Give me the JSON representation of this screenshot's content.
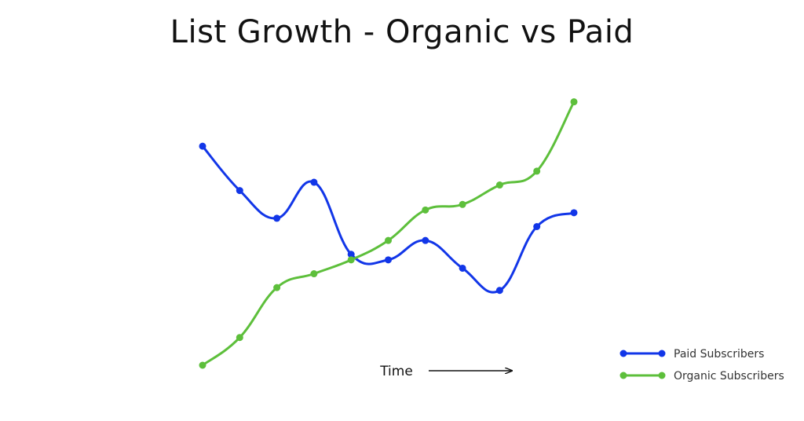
{
  "chart_data": {
    "type": "line",
    "title": "List Growth - Organic vs Paid",
    "xlabel": "Time",
    "ylabel": "",
    "x": [
      1,
      2,
      3,
      4,
      5,
      6,
      7,
      8,
      9,
      10,
      11
    ],
    "ylim": [
      0,
      100
    ],
    "grid": false,
    "legend_position": "bottom-right",
    "series": [
      {
        "name": "Paid  Subscribers",
        "color": "#1236e8",
        "values": [
          79,
          63,
          53,
          66,
          40,
          38,
          45,
          35,
          27,
          50,
          55
        ]
      },
      {
        "name": "Organic Subscribers",
        "color": "#5dbf3b",
        "values": [
          0,
          10,
          28,
          33,
          38,
          45,
          56,
          58,
          65,
          70,
          95
        ]
      }
    ]
  }
}
